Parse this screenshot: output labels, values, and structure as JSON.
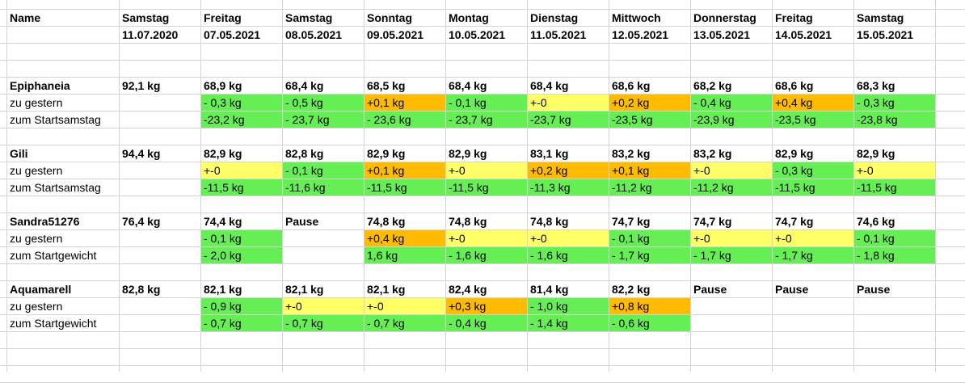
{
  "colors": {
    "green": "#66ee55",
    "orange": "#ffbb00",
    "yellow": "#ffff66",
    "grid": "#d4d4d4"
  },
  "header": {
    "name_label": "Name",
    "days": [
      "Samstag",
      "Freitag",
      "Samstag",
      "Sonntag",
      "Montag",
      "Dienstag",
      "Mittwoch",
      "Donnerstag",
      "Freitag",
      "Samstag"
    ],
    "dates": [
      "11.07.2020",
      "07.05.2021",
      "08.05.2021",
      "09.05.2021",
      "10.05.2021",
      "11.05.2021",
      "12.05.2021",
      "13.05.2021",
      "14.05.2021",
      "15.05.2021"
    ]
  },
  "people": [
    {
      "name": "Epiphaneia",
      "weights": [
        "92,1 kg",
        "68,9 kg",
        "68,4 kg",
        "68,5 kg",
        "68,4 kg",
        "68,4 kg",
        "68,6 kg",
        "68,2 kg",
        "68,6 kg",
        "68,3 kg"
      ],
      "rows": [
        {
          "label": "zu gestern",
          "values": [
            "",
            "- 0,3 kg",
            "- 0,5 kg",
            "+0,1 kg",
            "- 0,1 kg",
            "+-0",
            "+0,2 kg",
            "- 0,4 kg",
            "+0,4 kg",
            "- 0,3 kg"
          ],
          "colors": [
            "",
            "green",
            "green",
            "orange",
            "green",
            "yellow",
            "orange",
            "green",
            "orange",
            "green"
          ]
        },
        {
          "label": "zum Startsamstag",
          "values": [
            "",
            "-23,2 kg",
            "- 23,7 kg",
            "- 23,6 kg",
            "- 23,7 kg",
            "-23,7 kg",
            "-23,5 kg",
            "-23,9 kg",
            "-23,5 kg",
            "-23,8 kg"
          ],
          "colors": [
            "",
            "green",
            "green",
            "green",
            "green",
            "green",
            "green",
            "green",
            "green",
            "green"
          ]
        }
      ]
    },
    {
      "name": "Gili",
      "weights": [
        "94,4 kg",
        "82,9 kg",
        "82,8 kg",
        "82,9 kg",
        "82,9 kg",
        "83,1 kg",
        "83,2 kg",
        "83,2 kg",
        "82,9 kg",
        "82,9 kg"
      ],
      "rows": [
        {
          "label": "zu gestern",
          "values": [
            "",
            "+-0",
            "- 0,1 kg",
            "+0,1 kg",
            "+-0",
            "+0,2 kg",
            "+0,1 kg",
            "+-0",
            "- 0,3 kg",
            "+-0"
          ],
          "colors": [
            "",
            "yellow",
            "green",
            "orange",
            "yellow",
            "orange",
            "orange",
            "yellow",
            "green",
            "yellow"
          ]
        },
        {
          "label": "zum Startsamstag",
          "values": [
            "",
            "-11,5 kg",
            "-11,6 kg",
            "-11,5 kg",
            "-11,5 kg",
            "-11,3 kg",
            "-11,2 kg",
            "-11,2 kg",
            "-11,5 kg",
            "-11,5 kg"
          ],
          "colors": [
            "",
            "green",
            "green",
            "green",
            "green",
            "green",
            "green",
            "green",
            "green",
            "green"
          ]
        }
      ]
    },
    {
      "name": "Sandra51276",
      "weights": [
        "76,4 kg",
        "74,4 kg",
        "Pause",
        "74,8 kg",
        "74,8 kg",
        "74,8 kg",
        "74,7 kg",
        "74,7 kg",
        "74,7 kg",
        "74,6 kg"
      ],
      "rows": [
        {
          "label": "zu gestern",
          "values": [
            "",
            "- 0,1 kg",
            "",
            "+0,4 kg",
            "+-0",
            "+-0",
            "- 0,1 kg",
            "+-0",
            "+-0",
            "- 0,1 kg"
          ],
          "colors": [
            "",
            "green",
            "",
            "orange",
            "yellow",
            "yellow",
            "green",
            "yellow",
            "yellow",
            "green"
          ]
        },
        {
          "label": "zum Startgewicht",
          "values": [
            "",
            "- 2,0 kg",
            "",
            " 1,6 kg",
            "- 1,6 kg",
            "- 1,6 kg",
            "- 1,7 kg",
            "- 1,7 kg",
            "- 1,7 kg",
            "- 1,8 kg"
          ],
          "colors": [
            "",
            "green",
            "",
            "green",
            "green",
            "green",
            "green",
            "green",
            "green",
            "green"
          ]
        }
      ]
    },
    {
      "name": "Aquamarell",
      "weights": [
        "82,8 kg",
        "82,1 kg",
        "82,1 kg",
        "82,1 kg",
        "82,4 kg",
        "81,4 kg",
        "82,2 kg",
        "Pause",
        "Pause",
        "Pause"
      ],
      "rows": [
        {
          "label": "zu gestern",
          "values": [
            "",
            "- 0,9 kg",
            "+-0",
            "+-0",
            "+0,3 kg",
            "- 1,0 kg",
            "+0,8 kg",
            "",
            "",
            ""
          ],
          "colors": [
            "",
            "green",
            "yellow",
            "yellow",
            "orange",
            "green",
            "orange",
            "",
            "",
            ""
          ]
        },
        {
          "label": "zum Startgewicht",
          "values": [
            "",
            "- 0,7 kg",
            "- 0,7 kg",
            "- 0,7 kg",
            "- 0,4 kg",
            "- 1,4 kg",
            "- 0,6 kg",
            "",
            "",
            ""
          ],
          "colors": [
            "",
            "green",
            "green",
            "green",
            "green",
            "green",
            "green",
            "",
            "",
            ""
          ]
        }
      ]
    }
  ]
}
